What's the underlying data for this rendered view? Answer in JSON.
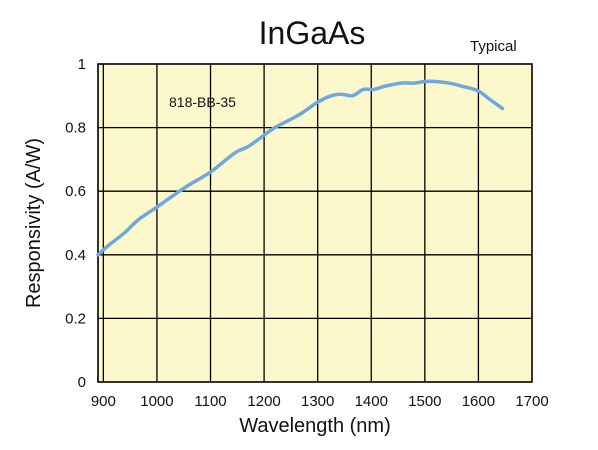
{
  "chart_data": {
    "type": "line",
    "title": "InGaAs",
    "subtitle": "Typical",
    "xlabel": "Wavelength (nm)",
    "ylabel": "Responsivity (A/W)",
    "xlim": [
      890,
      1700
    ],
    "ylim": [
      0,
      1
    ],
    "x_ticks": [
      "900",
      "1000",
      "1100",
      "1200",
      "1300",
      "1400",
      "1500",
      "1600",
      "1700"
    ],
    "y_ticks": [
      "0",
      "0.2",
      "0.4",
      "0.6",
      "0.8",
      "1"
    ],
    "grid": true,
    "plot_background": "#fdf7cc",
    "series": [
      {
        "color": "#6fa8dc",
        "x": [
          890,
          910,
          940,
          965,
          1000,
          1025,
          1060,
          1100,
          1145,
          1170,
          1195,
          1220,
          1265,
          1300,
          1325,
          1345,
          1365,
          1385,
          1405,
          1425,
          1455,
          1480,
          1500,
          1520,
          1545,
          1570,
          1600,
          1620,
          1645
        ],
        "y": [
          0.4,
          0.43,
          0.47,
          0.51,
          0.55,
          0.58,
          0.62,
          0.66,
          0.72,
          0.74,
          0.77,
          0.8,
          0.84,
          0.88,
          0.9,
          0.905,
          0.9,
          0.92,
          0.92,
          0.93,
          0.94,
          0.94,
          0.945,
          0.945,
          0.94,
          0.93,
          0.915,
          0.89,
          0.86
        ]
      }
    ],
    "annotations": [
      {
        "text": "818-BB-35",
        "x": 1085,
        "y": 0.865
      }
    ]
  }
}
